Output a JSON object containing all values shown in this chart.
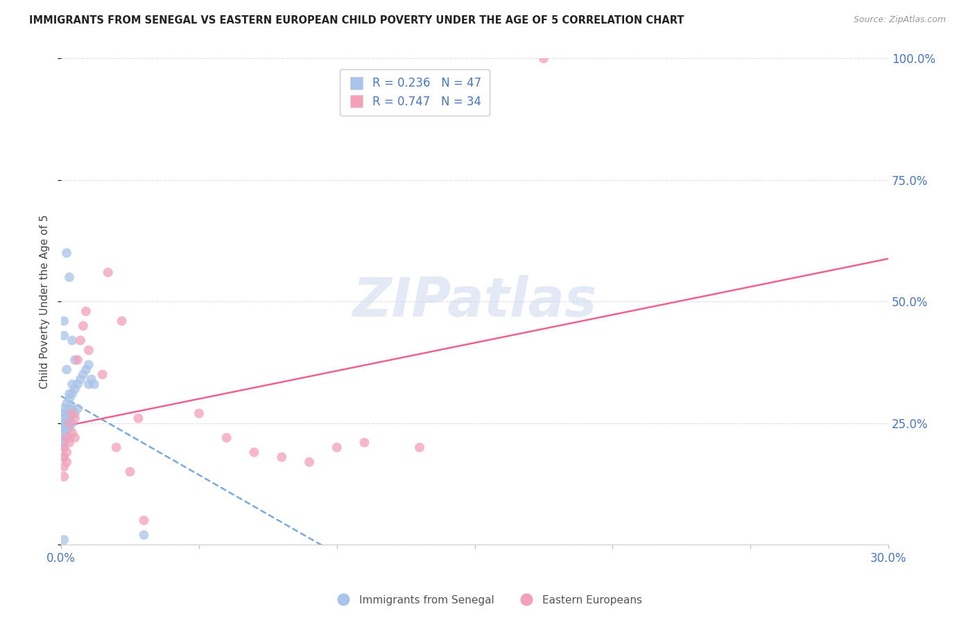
{
  "title": "IMMIGRANTS FROM SENEGAL VS EASTERN EUROPEAN CHILD POVERTY UNDER THE AGE OF 5 CORRELATION CHART",
  "source": "Source: ZipAtlas.com",
  "ylabel": "Child Poverty Under the Age of 5",
  "watermark": "ZIPatlas",
  "xlim": [
    0.0,
    0.3
  ],
  "ylim": [
    0.0,
    1.0
  ],
  "background_color": "#ffffff",
  "grid_color": "#e0e0e0",
  "senegal_color": "#a8c4e8",
  "eastern_color": "#f4a0b8",
  "senegal_line_color": "#7aaadd",
  "eastern_line_color": "#f06090",
  "senegal_R": 0.236,
  "senegal_N": 47,
  "eastern_R": 0.747,
  "eastern_N": 34,
  "legend_color": "#4477cc",
  "tick_color": "#4477cc",
  "title_color": "#222222",
  "source_color": "#999999",
  "ylabel_color": "#444444",
  "senegal_x": [
    0.001,
    0.001,
    0.001,
    0.001,
    0.001,
    0.001,
    0.001,
    0.001,
    0.001,
    0.001,
    0.002,
    0.002,
    0.002,
    0.002,
    0.002,
    0.002,
    0.002,
    0.003,
    0.003,
    0.003,
    0.003,
    0.003,
    0.004,
    0.004,
    0.004,
    0.005,
    0.005,
    0.006,
    0.006,
    0.007,
    0.008,
    0.009,
    0.01,
    0.01,
    0.011,
    0.012,
    0.001,
    0.002,
    0.003,
    0.004,
    0.005,
    0.003,
    0.002,
    0.001,
    0.004,
    0.03,
    0.001
  ],
  "senegal_y": [
    0.28,
    0.27,
    0.26,
    0.25,
    0.24,
    0.23,
    0.22,
    0.21,
    0.2,
    0.18,
    0.29,
    0.27,
    0.26,
    0.25,
    0.24,
    0.23,
    0.22,
    0.3,
    0.28,
    0.26,
    0.24,
    0.22,
    0.31,
    0.28,
    0.25,
    0.32,
    0.27,
    0.33,
    0.28,
    0.34,
    0.35,
    0.36,
    0.37,
    0.33,
    0.34,
    0.33,
    0.46,
    0.6,
    0.55,
    0.42,
    0.38,
    0.31,
    0.36,
    0.43,
    0.33,
    0.02,
    0.01
  ],
  "eastern_x": [
    0.001,
    0.001,
    0.001,
    0.001,
    0.002,
    0.002,
    0.002,
    0.003,
    0.003,
    0.004,
    0.004,
    0.005,
    0.005,
    0.006,
    0.007,
    0.008,
    0.009,
    0.01,
    0.015,
    0.017,
    0.02,
    0.022,
    0.025,
    0.028,
    0.03,
    0.05,
    0.06,
    0.07,
    0.08,
    0.09,
    0.1,
    0.11,
    0.13,
    0.175
  ],
  "eastern_y": [
    0.2,
    0.18,
    0.16,
    0.14,
    0.22,
    0.19,
    0.17,
    0.25,
    0.21,
    0.27,
    0.23,
    0.26,
    0.22,
    0.38,
    0.42,
    0.45,
    0.48,
    0.4,
    0.35,
    0.56,
    0.2,
    0.46,
    0.15,
    0.26,
    0.05,
    0.27,
    0.22,
    0.19,
    0.18,
    0.17,
    0.2,
    0.21,
    0.2,
    1.0
  ],
  "senegal_trendline": [
    0.22,
    0.35
  ],
  "eastern_trendline": [
    0.02,
    0.9
  ],
  "xticks": [
    0.0,
    0.05,
    0.1,
    0.15,
    0.2,
    0.25,
    0.3
  ],
  "xtick_labels": [
    "0.0%",
    "",
    "",
    "",
    "",
    "",
    "30.0%"
  ],
  "yticks": [
    0.0,
    0.25,
    0.5,
    0.75,
    1.0
  ],
  "ytick_labels_right": [
    "",
    "25.0%",
    "50.0%",
    "75.0%",
    "100.0%"
  ]
}
